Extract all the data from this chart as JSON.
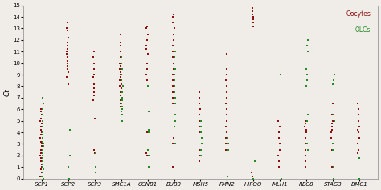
{
  "genes": [
    "SCP1",
    "SCP2",
    "SCP3",
    "SMC1A",
    "CCNB1",
    "BUB3",
    "MSH5",
    "FMN2",
    "HIFOO",
    "MLH1",
    "REC8",
    "STAG3",
    "DMC1"
  ],
  "oocyte_color": "#8B1010",
  "olc_color": "#228B22",
  "bg_color": "#f0ece8",
  "ylabel": "Ct",
  "ylim": [
    0,
    15
  ],
  "yticks": [
    0,
    1,
    2,
    3,
    4,
    5,
    6,
    7,
    8,
    9,
    10,
    11,
    12,
    13,
    14,
    15
  ],
  "legend_oocytes": "Oocytes",
  "legend_olcs": "OLCs",
  "oocytes_data": {
    "SCP1": [
      0.2,
      0.5,
      0.8,
      1.0,
      1.2,
      1.5,
      1.8,
      2.0,
      2.2,
      2.5,
      2.8,
      3.0,
      3.2,
      3.5,
      3.8,
      4.0,
      4.2,
      4.5,
      4.8,
      5.0,
      5.2,
      5.5,
      5.8,
      6.0
    ],
    "SCP2": [
      8.2,
      8.8,
      9.2,
      9.5,
      9.8,
      10.0,
      10.2,
      10.5,
      10.8,
      11.0,
      11.2,
      11.5,
      11.8,
      12.2,
      12.8,
      13.0,
      13.5
    ],
    "SCP3": [
      2.2,
      2.5,
      5.2,
      6.8,
      7.2,
      7.5,
      7.8,
      8.2,
      8.8,
      9.0,
      9.5,
      10.0,
      10.5,
      11.0
    ],
    "SMC1A": [
      6.2,
      6.5,
      6.8,
      7.0,
      7.2,
      7.5,
      7.8,
      8.0,
      8.2,
      8.5,
      8.8,
      9.0,
      9.2,
      9.5,
      9.8,
      10.0,
      10.5,
      11.0,
      11.5,
      11.8,
      12.5
    ],
    "CCNB1": [
      2.0,
      2.2,
      4.0,
      8.5,
      9.0,
      9.5,
      10.0,
      10.8,
      11.2,
      11.5,
      12.0,
      12.5,
      13.0,
      13.2
    ],
    "BUB3": [
      1.0,
      3.0,
      3.5,
      6.5,
      7.0,
      7.5,
      8.0,
      8.5,
      9.0,
      9.5,
      10.0,
      10.5,
      11.0,
      11.5,
      12.0,
      12.5,
      13.0,
      13.5,
      14.0,
      14.2
    ],
    "MSH5": [
      1.5,
      2.0,
      2.5,
      4.0,
      4.5,
      5.0,
      5.5,
      6.0,
      6.5,
      7.0,
      7.5
    ],
    "FMN2": [
      2.5,
      3.0,
      3.5,
      4.0,
      4.5,
      5.0,
      5.5,
      6.0,
      6.5,
      7.0,
      7.5,
      8.0,
      8.5,
      9.0,
      9.5,
      10.8
    ],
    "HIFOO": [
      0.2,
      0.5,
      13.2,
      13.5,
      13.8,
      14.0,
      14.2,
      14.5,
      14.8,
      15.0
    ],
    "MLH1": [
      1.0,
      1.5,
      2.0,
      2.5,
      3.0,
      3.5,
      4.0,
      4.5,
      5.0
    ],
    "REC8": [
      1.0,
      1.5,
      2.0,
      2.5,
      3.0,
      3.5,
      4.0,
      4.2,
      4.5,
      4.8,
      5.0
    ],
    "STAG3": [
      1.0,
      2.5,
      3.0,
      3.5,
      4.0,
      4.2,
      4.5,
      4.8,
      5.0,
      5.5,
      6.5
    ],
    "DMC1": [
      2.2,
      2.5,
      3.0,
      3.5,
      4.0,
      4.2,
      4.5,
      5.0,
      5.5,
      6.0,
      6.5
    ]
  },
  "olcs_data": {
    "SCP1": [
      0.0,
      0.2,
      0.5,
      0.8,
      1.0,
      1.2,
      1.5,
      1.8,
      2.0,
      2.2,
      2.5,
      2.8,
      3.0,
      3.2,
      3.5,
      3.8,
      4.0,
      4.5,
      5.0,
      5.5,
      6.0,
      6.5,
      7.0
    ],
    "SCP2": [
      0.0,
      1.0,
      2.0,
      4.2
    ],
    "SCP3": [
      0.5,
      1.0,
      2.2
    ],
    "SMC1A": [
      5.0,
      5.5,
      5.8,
      6.0,
      6.2,
      6.5,
      6.8,
      7.0,
      7.5,
      8.0,
      8.5,
      9.0,
      9.5,
      10.0,
      10.5
    ],
    "CCNB1": [
      1.0,
      2.0,
      2.5,
      4.0,
      4.2,
      5.8,
      8.0
    ],
    "BUB3": [
      3.0,
      4.5,
      5.0,
      5.5,
      6.5,
      7.0,
      7.5,
      8.0,
      8.5,
      9.0,
      9.5,
      10.5,
      11.0
    ],
    "MSH5": [
      2.0,
      2.5,
      3.0,
      3.5,
      4.0,
      4.5,
      5.0
    ],
    "FMN2": [
      0.2,
      2.5,
      3.0,
      3.5
    ],
    "HIFOO": [
      0.0,
      1.5
    ],
    "MLH1": [
      0.0,
      9.0
    ],
    "REC8": [
      2.5,
      3.0,
      5.0,
      5.5,
      8.0,
      8.5,
      9.0,
      9.5,
      11.0,
      11.5,
      12.0
    ],
    "STAG3": [
      0.0,
      1.0,
      2.5,
      3.0,
      5.0,
      5.5,
      8.2,
      8.5,
      9.0
    ],
    "DMC1": [
      0.0,
      1.8
    ]
  }
}
